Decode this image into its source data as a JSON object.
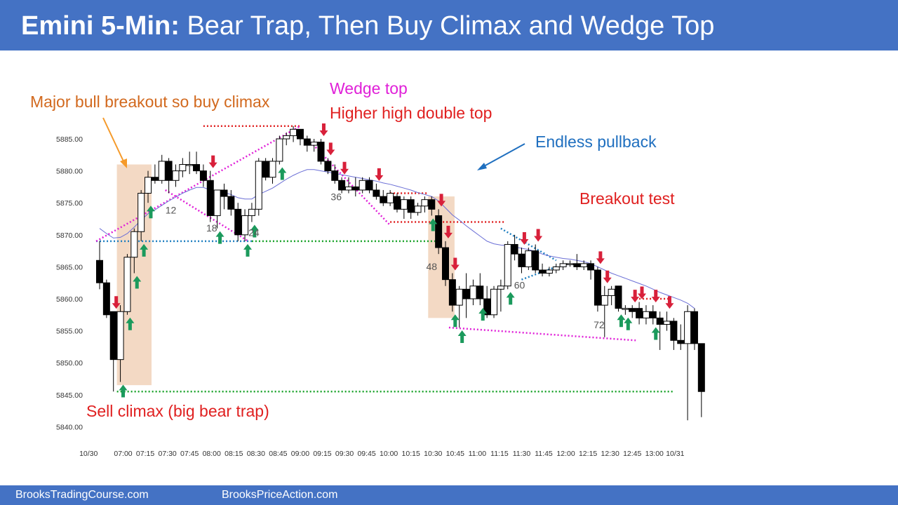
{
  "header": {
    "title_bold": "Emini 5-Min:",
    "title_rest": "Bear Trap, Then Buy Climax and Wedge Top"
  },
  "footer": {
    "left": "BrooksTradingCourse.com",
    "right": "BrooksPriceAction.com"
  },
  "colors": {
    "header_bg": "#4472c4",
    "bull_arrow": "#1b9a5c",
    "bear_arrow": "#d8203a",
    "magenta": "#e020d8",
    "blue_dot": "#1f7fc0",
    "green_dot": "#1aa32a",
    "red_dot": "#e02020",
    "ema": "#6b6fd6",
    "highlight": "#f3d9c4"
  },
  "chart_data": {
    "type": "candlestick",
    "title": "Emini 5-Min: Bear Trap, Then Buy Climax and Wedge Top",
    "ylim": [
      5840,
      5890
    ],
    "y_ticks": [
      "5885.00",
      "5880.00",
      "5875.00",
      "5870.00",
      "5865.00",
      "5860.00",
      "5855.00",
      "5850.00",
      "5845.00",
      "5840.00"
    ],
    "y_tick_values": [
      5885,
      5880,
      5875,
      5870,
      5865,
      5860,
      5855,
      5850,
      5845,
      5840
    ],
    "x_ticks": [
      "10/30",
      "07:00",
      "07:15",
      "07:30",
      "07:45",
      "08:00",
      "08:15",
      "08:30",
      "08:45",
      "09:00",
      "09:15",
      "09:30",
      "09:45",
      "10:00",
      "10:15",
      "10:30",
      "10:45",
      "11:00",
      "11:15",
      "11:30",
      "11:45",
      "12:00",
      "12:15",
      "12:30",
      "12:45",
      "13:00",
      "10/31"
    ],
    "x_tick_bars": [
      -1.6,
      3.4,
      6.6,
      9.8,
      13,
      16.2,
      19.4,
      22.6,
      25.8,
      29,
      32.2,
      35.4,
      38.6,
      41.8,
      45,
      48.2,
      51.4,
      54.6,
      57.8,
      61,
      64.2,
      67.4,
      70.6,
      73.8,
      77,
      80.2,
      83.2
    ],
    "candles": [
      {
        "o": 5866,
        "h": 5869,
        "l": 5861.5,
        "c": 5862.5
      },
      {
        "o": 5862.5,
        "h": 5863,
        "l": 5857,
        "c": 5857.5
      },
      {
        "o": 5858,
        "h": 5858,
        "l": 5845.5,
        "c": 5850.5
      },
      {
        "o": 5850.5,
        "h": 5859,
        "l": 5847,
        "c": 5858
      },
      {
        "o": 5858,
        "h": 5867,
        "l": 5857.5,
        "c": 5866.5
      },
      {
        "o": 5866.5,
        "h": 5871,
        "l": 5864,
        "c": 5870.5
      },
      {
        "o": 5870.5,
        "h": 5877,
        "l": 5869,
        "c": 5876.5
      },
      {
        "o": 5876.5,
        "h": 5880,
        "l": 5875,
        "c": 5879
      },
      {
        "o": 5879,
        "h": 5881,
        "l": 5878,
        "c": 5878.5
      },
      {
        "o": 5878.5,
        "h": 5882.5,
        "l": 5878,
        "c": 5881.5
      },
      {
        "o": 5881.5,
        "h": 5882,
        "l": 5876.5,
        "c": 5878.5
      },
      {
        "o": 5878.5,
        "h": 5881,
        "l": 5877.5,
        "c": 5880
      },
      {
        "o": 5880,
        "h": 5882,
        "l": 5879,
        "c": 5881
      },
      {
        "o": 5881,
        "h": 5883,
        "l": 5879.5,
        "c": 5881
      },
      {
        "o": 5881,
        "h": 5883,
        "l": 5879.5,
        "c": 5880
      },
      {
        "o": 5880,
        "h": 5881,
        "l": 5877.5,
        "c": 5878.5
      },
      {
        "o": 5878.5,
        "h": 5880,
        "l": 5872,
        "c": 5873
      },
      {
        "o": 5873,
        "h": 5877,
        "l": 5871,
        "c": 5877
      },
      {
        "o": 5877,
        "h": 5878,
        "l": 5874,
        "c": 5876
      },
      {
        "o": 5876,
        "h": 5877,
        "l": 5873,
        "c": 5874
      },
      {
        "o": 5874,
        "h": 5875,
        "l": 5869,
        "c": 5870
      },
      {
        "o": 5870,
        "h": 5874,
        "l": 5869,
        "c": 5873
      },
      {
        "o": 5873,
        "h": 5875,
        "l": 5872,
        "c": 5874
      },
      {
        "o": 5874,
        "h": 5882,
        "l": 5873,
        "c": 5881.5
      },
      {
        "o": 5881.5,
        "h": 5882,
        "l": 5878.5,
        "c": 5879
      },
      {
        "o": 5879,
        "h": 5882,
        "l": 5878,
        "c": 5881.5
      },
      {
        "o": 5881.5,
        "h": 5885.5,
        "l": 5881,
        "c": 5885
      },
      {
        "o": 5885,
        "h": 5886,
        "l": 5884,
        "c": 5885.5
      },
      {
        "o": 5885.5,
        "h": 5887,
        "l": 5884.5,
        "c": 5886.5
      },
      {
        "o": 5886.5,
        "h": 5886.5,
        "l": 5884,
        "c": 5885
      },
      {
        "o": 5885,
        "h": 5885.5,
        "l": 5883,
        "c": 5884
      },
      {
        "o": 5884,
        "h": 5885,
        "l": 5883,
        "c": 5884.5
      },
      {
        "o": 5884.5,
        "h": 5885,
        "l": 5881,
        "c": 5881.5
      },
      {
        "o": 5881.5,
        "h": 5882,
        "l": 5879.5,
        "c": 5880
      },
      {
        "o": 5880,
        "h": 5881,
        "l": 5878,
        "c": 5878.5
      },
      {
        "o": 5878.5,
        "h": 5879,
        "l": 5876.5,
        "c": 5877
      },
      {
        "o": 5877,
        "h": 5879,
        "l": 5876.5,
        "c": 5877.5
      },
      {
        "o": 5877.5,
        "h": 5879,
        "l": 5876,
        "c": 5877
      },
      {
        "o": 5877,
        "h": 5879,
        "l": 5876.5,
        "c": 5878.5
      },
      {
        "o": 5878.5,
        "h": 5879,
        "l": 5876.5,
        "c": 5877
      },
      {
        "o": 5877,
        "h": 5878,
        "l": 5875.5,
        "c": 5876
      },
      {
        "o": 5876,
        "h": 5877,
        "l": 5874.5,
        "c": 5875
      },
      {
        "o": 5875,
        "h": 5877,
        "l": 5874.5,
        "c": 5876.5
      },
      {
        "o": 5876,
        "h": 5876.5,
        "l": 5873.5,
        "c": 5874
      },
      {
        "o": 5874,
        "h": 5876,
        "l": 5872.5,
        "c": 5875.5
      },
      {
        "o": 5875.5,
        "h": 5876,
        "l": 5872.5,
        "c": 5873.5
      },
      {
        "o": 5873.5,
        "h": 5875,
        "l": 5873,
        "c": 5874.5
      },
      {
        "o": 5874.5,
        "h": 5876,
        "l": 5873.5,
        "c": 5875.5
      },
      {
        "o": 5875.5,
        "h": 5876,
        "l": 5873,
        "c": 5874
      },
      {
        "o": 5873,
        "h": 5874,
        "l": 5867,
        "c": 5868
      },
      {
        "o": 5868,
        "h": 5869,
        "l": 5862,
        "c": 5863
      },
      {
        "o": 5863,
        "h": 5864,
        "l": 5858,
        "c": 5859
      },
      {
        "o": 5859,
        "h": 5862,
        "l": 5855.5,
        "c": 5861.5
      },
      {
        "o": 5861.5,
        "h": 5864,
        "l": 5857,
        "c": 5860
      },
      {
        "o": 5860,
        "h": 5863,
        "l": 5859,
        "c": 5862
      },
      {
        "o": 5862,
        "h": 5864,
        "l": 5859,
        "c": 5860
      },
      {
        "o": 5860,
        "h": 5862,
        "l": 5857,
        "c": 5857.5
      },
      {
        "o": 5857.5,
        "h": 5862,
        "l": 5857,
        "c": 5861.5
      },
      {
        "o": 5861.5,
        "h": 5863,
        "l": 5858,
        "c": 5862
      },
      {
        "o": 5862,
        "h": 5869,
        "l": 5861.5,
        "c": 5868.5
      },
      {
        "o": 5868.5,
        "h": 5870,
        "l": 5866,
        "c": 5867
      },
      {
        "o": 5867,
        "h": 5868,
        "l": 5864,
        "c": 5865
      },
      {
        "o": 5865,
        "h": 5868,
        "l": 5864.5,
        "c": 5867.5
      },
      {
        "o": 5867.5,
        "h": 5868.5,
        "l": 5864,
        "c": 5864.5
      },
      {
        "o": 5864.5,
        "h": 5865.5,
        "l": 5863.5,
        "c": 5864
      },
      {
        "o": 5864,
        "h": 5865,
        "l": 5863.5,
        "c": 5864.5
      },
      {
        "o": 5864.5,
        "h": 5865.5,
        "l": 5864,
        "c": 5865
      },
      {
        "o": 5865,
        "h": 5866,
        "l": 5864.5,
        "c": 5865.5
      },
      {
        "o": 5865.5,
        "h": 5866,
        "l": 5865,
        "c": 5865.5
      },
      {
        "o": 5865.5,
        "h": 5867,
        "l": 5864.5,
        "c": 5865
      },
      {
        "o": 5865,
        "h": 5866,
        "l": 5864.5,
        "c": 5865.5
      },
      {
        "o": 5865.5,
        "h": 5866,
        "l": 5863,
        "c": 5864.5
      },
      {
        "o": 5864.5,
        "h": 5865,
        "l": 5858,
        "c": 5859
      },
      {
        "o": 5859,
        "h": 5862,
        "l": 5854,
        "c": 5860.5
      },
      {
        "o": 5860.5,
        "h": 5862,
        "l": 5859,
        "c": 5861.5
      },
      {
        "o": 5862,
        "h": 5862,
        "l": 5858,
        "c": 5858.5
      },
      {
        "o": 5858.5,
        "h": 5859,
        "l": 5857.5,
        "c": 5858.5
      },
      {
        "o": 5858.5,
        "h": 5859,
        "l": 5857,
        "c": 5858
      },
      {
        "o": 5858.5,
        "h": 5859.5,
        "l": 5856,
        "c": 5857
      },
      {
        "o": 5857,
        "h": 5859,
        "l": 5856,
        "c": 5858
      },
      {
        "o": 5858,
        "h": 5859,
        "l": 5856,
        "c": 5857
      },
      {
        "o": 5857,
        "h": 5858,
        "l": 5852,
        "c": 5856
      },
      {
        "o": 5856,
        "h": 5858,
        "l": 5855,
        "c": 5856.5
      },
      {
        "o": 5856.5,
        "h": 5857,
        "l": 5852,
        "c": 5853.5
      },
      {
        "o": 5853.5,
        "h": 5856,
        "l": 5852,
        "c": 5853
      },
      {
        "o": 5853,
        "h": 5859,
        "l": 5841,
        "c": 5858
      },
      {
        "o": 5858,
        "h": 5858.5,
        "l": 5852,
        "c": 5853
      },
      {
        "o": 5853,
        "h": 5853,
        "l": 5841.5,
        "c": 5845.5
      }
    ],
    "ema": [
      5871,
      5870.2,
      5869.5,
      5869.6,
      5870.2,
      5871.2,
      5872.3,
      5873.3,
      5873.9,
      5874.6,
      5875.3,
      5875.9,
      5876.5,
      5877,
      5877.4,
      5877.4,
      5877,
      5876.8,
      5876.6,
      5876.3,
      5875.8,
      5875.6,
      5875.6,
      5876.3,
      5876.8,
      5877.3,
      5878,
      5878.7,
      5879.3,
      5879.8,
      5880.2,
      5880.2,
      5880,
      5879.8,
      5879.6,
      5879.4,
      5879.2,
      5879,
      5878.8,
      5878.6,
      5878.4,
      5878.1,
      5877.9,
      5877.6,
      5877.3,
      5877,
      5876.6,
      5876.3,
      5876,
      5875.3,
      5874.2,
      5873.1,
      5872.3,
      5871.4,
      5870.6,
      5869.8,
      5869,
      5868.6,
      5868.4,
      5868.3,
      5868.1,
      5867.9,
      5867.7,
      5867.4,
      5867,
      5866.7,
      5866.5,
      5866.3,
      5866.2,
      5866,
      5865.8,
      5865.5,
      5865,
      5864.5,
      5864,
      5863.6,
      5863.2,
      5862.8,
      5862.4,
      5862,
      5861.5,
      5861,
      5860.6,
      5860.2,
      5859.8,
      5859.3,
      5858.5
    ],
    "bar_numbers": [
      {
        "label": "12",
        "bar": 10.3,
        "y": 5873.3
      },
      {
        "label": "18",
        "bar": 16.2,
        "y": 5870.5
      },
      {
        "label": "24",
        "bar": 22.3,
        "y": 5869.8
      },
      {
        "label": "36",
        "bar": 34.2,
        "y": 5875.4
      },
      {
        "label": "48",
        "bar": 48,
        "y": 5864.5
      },
      {
        "label": "60",
        "bar": 60.7,
        "y": 5861.6
      },
      {
        "label": "72",
        "bar": 72.2,
        "y": 5855.4
      }
    ],
    "bull_arrows": [
      3.4,
      4.4,
      5.4,
      6.4,
      7.4,
      17.4,
      21.4,
      22.4,
      26.4,
      48.2,
      51.4,
      52.4,
      55.4,
      59.4,
      75.4,
      76.4,
      80.4
    ],
    "bear_arrows": [
      2.4,
      16.4,
      32.4,
      33.4,
      35.4,
      40.4,
      49.4,
      50.4,
      51.4,
      61.4,
      63.4,
      72.4,
      73.4,
      77.4,
      78.4,
      80.4,
      82.4
    ],
    "annotations": {
      "major_bull_breakout": "Major bull breakout so buy climax",
      "wedge_top": "Wedge top",
      "higher_high_double_top": "Higher high double top",
      "endless_pullback": "Endless pullback",
      "breakout_test": "Breakout test",
      "sell_climax": "Sell climax (big bear trap)"
    },
    "highlights": [
      {
        "from_bar": 3,
        "to_bar": 7,
        "top": 5881,
        "bottom": 5846.5
      },
      {
        "from_bar": 48,
        "to_bar": 50.8,
        "top": 5876,
        "bottom": 5857
      }
    ],
    "lines": [
      {
        "kind": "horizontal",
        "style": "blue_dot",
        "y": 5869,
        "from_bar": -0.5,
        "to_bar": 22
      },
      {
        "kind": "horizontal",
        "style": "green_dot",
        "y": 5869,
        "from_bar": 22,
        "to_bar": 48.5
      },
      {
        "kind": "horizontal",
        "style": "green_dot",
        "y": 5845.5,
        "from_bar": 2.5,
        "to_bar": 83
      },
      {
        "kind": "horizontal",
        "style": "red_dot",
        "y": 5887,
        "from_bar": 15,
        "to_bar": 29
      },
      {
        "kind": "horizontal",
        "style": "red_dot",
        "y": 5876.5,
        "from_bar": 42,
        "to_bar": 47.5
      },
      {
        "kind": "horizontal",
        "style": "red_dot",
        "y": 5872,
        "from_bar": 42,
        "to_bar": 58.5
      },
      {
        "kind": "horizontal",
        "style": "red_dot",
        "y": 5860,
        "from_bar": 78,
        "to_bar": 82.5
      },
      {
        "kind": "diagonal",
        "style": "magenta",
        "from": [
          -0.5,
          5869
        ],
        "to": [
          29,
          5887
        ]
      },
      {
        "kind": "diagonal",
        "style": "magenta",
        "from": [
          9.5,
          5877
        ],
        "to": [
          21.5,
          5869
        ]
      },
      {
        "kind": "diagonal",
        "style": "magenta",
        "from": [
          30.5,
          5884.5
        ],
        "to": [
          42,
          5871.5
        ]
      },
      {
        "kind": "diagonal",
        "style": "magenta",
        "from": [
          50.5,
          5855.5
        ],
        "to": [
          77.5,
          5853.5
        ]
      },
      {
        "kind": "diagonal",
        "style": "blue_dot",
        "from": [
          58,
          5871
        ],
        "to": [
          66,
          5866
        ]
      },
      {
        "kind": "diagonal",
        "style": "blue_dot",
        "from": [
          61,
          5863
        ],
        "to": [
          66,
          5865
        ]
      }
    ]
  }
}
